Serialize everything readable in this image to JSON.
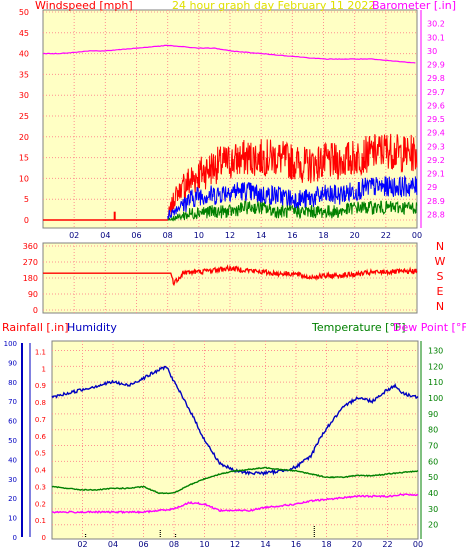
{
  "header": {
    "left_label": "Windspeed [mph]",
    "center_label": "24 hour graph day   February 11 2022",
    "right_label": "Barometer [.in]"
  },
  "colors": {
    "plot_bg": "#ffffc4",
    "grid": "#ff9090",
    "border": "#000000",
    "wind_red": "#ff0000",
    "wind_blue": "#0000ff",
    "wind_green": "#008000",
    "baro": "#ff00ff",
    "humidity": "#0000c0",
    "temperature": "#008000",
    "dewpoint": "#ff00ff",
    "rain": "#0000ff",
    "center_title": "#e0e000"
  },
  "chart_data": [
    {
      "type": "line",
      "id": "wind_baro",
      "x_tick_labels": [
        "02",
        "04",
        "06",
        "08",
        "10",
        "12",
        "14",
        "16",
        "18",
        "20",
        "22",
        "00"
      ],
      "x_range_hours": [
        0,
        24
      ],
      "left_axis": {
        "label": "Windspeed [mph]",
        "range": [
          0,
          50
        ],
        "ticks": [
          0,
          5,
          10,
          15,
          20,
          25,
          30,
          35,
          40,
          45,
          50
        ]
      },
      "right_axis": {
        "label": "Barometer [.in]",
        "range": [
          28.7,
          30.3
        ],
        "ticks": [
          "28.8",
          "28.9",
          "29",
          "29.1",
          "29.2",
          "29.3",
          "29.4",
          "29.5",
          "29.6",
          "29.7",
          "29.8",
          "29.9",
          "30",
          "30.1",
          "30.2"
        ]
      },
      "series": [
        {
          "role": "wind_gust_max",
          "x": [
            0,
            4.5,
            4.6,
            4.7,
            8,
            8.5,
            9,
            10,
            11,
            12,
            13,
            14,
            15,
            16,
            17,
            18,
            19,
            20,
            21,
            22,
            23,
            24
          ],
          "y": [
            0,
            0,
            2,
            0,
            0,
            6,
            8,
            11,
            13,
            14,
            15,
            15,
            15,
            14,
            13,
            14,
            14,
            15,
            16,
            17,
            16,
            16
          ]
        },
        {
          "role": "wind_avg",
          "x": [
            8,
            9,
            10,
            11,
            12,
            13,
            14,
            15,
            16,
            17,
            18,
            19,
            20,
            21,
            22,
            23,
            24
          ],
          "y": [
            1,
            4,
            6,
            6,
            7,
            7,
            6,
            6,
            5,
            5,
            6,
            6,
            7,
            8,
            8,
            8,
            8
          ]
        },
        {
          "role": "wind_min",
          "x": [
            8,
            9,
            10,
            11,
            12,
            13,
            14,
            15,
            16,
            17,
            18,
            19,
            20,
            21,
            22,
            23,
            24
          ],
          "y": [
            0,
            1,
            2,
            2,
            2,
            3,
            3,
            2,
            2,
            2,
            2,
            2,
            3,
            3,
            3,
            3,
            3
          ]
        },
        {
          "role": "barometer",
          "x": [
            0,
            1,
            2,
            3,
            4,
            5,
            6,
            7,
            8,
            9,
            10,
            11,
            12,
            13,
            14,
            15,
            16,
            17,
            18,
            19,
            20,
            21,
            22,
            23,
            24
          ],
          "y": [
            29.98,
            29.98,
            29.99,
            30.0,
            30.0,
            30.01,
            30.02,
            30.03,
            30.04,
            30.03,
            30.02,
            30.02,
            30.0,
            29.99,
            29.98,
            29.97,
            29.96,
            29.95,
            29.94,
            29.94,
            29.94,
            29.94,
            29.93,
            29.92,
            29.91
          ]
        }
      ]
    },
    {
      "type": "line",
      "id": "wind_direction",
      "left_axis": {
        "range": [
          0,
          360
        ],
        "ticks": [
          0,
          90,
          180,
          270,
          360
        ]
      },
      "right_labels": [
        "N",
        "W",
        "S",
        "E",
        "N"
      ],
      "series": [
        {
          "role": "direction",
          "x": [
            0,
            8.2,
            8.4,
            8.8,
            9,
            10,
            11,
            12,
            13,
            14,
            15,
            16,
            17,
            18,
            19,
            20,
            21,
            22,
            23,
            24
          ],
          "y": [
            207,
            207,
            150,
            190,
            210,
            215,
            225,
            235,
            225,
            215,
            205,
            205,
            185,
            190,
            195,
            200,
            210,
            215,
            215,
            220
          ]
        }
      ]
    },
    {
      "type": "line",
      "id": "temp_humidity",
      "header": {
        "rain_label": "Rainfall [.in]",
        "humidity_label": "Humidity",
        "temp_label": "Temperature [°F]",
        "dew_label": "Dew Point [°F]"
      },
      "x_tick_labels": [
        "02",
        "04",
        "06",
        "08",
        "10",
        "12",
        "14",
        "16",
        "18",
        "20",
        "22",
        "00"
      ],
      "left_axis_humidity": {
        "range": [
          0,
          100
        ],
        "ticks": [
          0,
          10,
          20,
          30,
          40,
          50,
          60,
          70,
          80,
          90,
          100
        ]
      },
      "left_axis_rain": {
        "range": [
          0,
          1.15
        ],
        "ticks": [
          "0",
          "0.1",
          "0.2",
          "0.3",
          "0.4",
          "0.5",
          "0.6",
          "0.7",
          "0.8",
          "0.9",
          "1",
          "1.1"
        ]
      },
      "right_axis_temp": {
        "range": [
          11,
          136
        ],
        "ticks": [
          20,
          30,
          40,
          50,
          60,
          70,
          80,
          90,
          100,
          110,
          120,
          130
        ]
      },
      "series": [
        {
          "role": "humidity",
          "x": [
            0,
            1,
            2,
            3,
            4,
            5,
            6,
            7,
            7.5,
            8,
            9,
            10,
            10.5,
            11,
            12,
            13,
            14,
            15,
            16,
            17,
            17.5,
            18,
            19,
            20,
            21,
            22,
            22.5,
            23,
            24
          ],
          "y": [
            72,
            74,
            76,
            78,
            80,
            78,
            82,
            86,
            88,
            80,
            66,
            50,
            44,
            38,
            34,
            33,
            33,
            34,
            36,
            42,
            50,
            56,
            66,
            72,
            70,
            76,
            78,
            74,
            72
          ]
        },
        {
          "role": "temperature",
          "x": [
            0,
            1,
            2,
            3,
            4,
            5,
            6,
            6.5,
            7,
            8,
            9,
            10,
            11,
            12,
            13,
            14,
            15,
            16,
            17,
            18,
            19,
            20,
            21,
            22,
            23,
            24
          ],
          "y": [
            44,
            43,
            42,
            42,
            43,
            43,
            44,
            42,
            40,
            40,
            45,
            49,
            52,
            54,
            55,
            56,
            55,
            54,
            52,
            50,
            50,
            51,
            51,
            52,
            53,
            54
          ]
        },
        {
          "role": "dewpoint",
          "x": [
            0,
            1,
            2,
            3,
            4,
            5,
            6,
            7,
            8,
            9,
            10,
            11,
            12,
            13,
            14,
            15,
            16,
            17,
            18,
            19,
            20,
            21,
            22,
            23,
            24
          ],
          "y": [
            28,
            28,
            28,
            28,
            28,
            28,
            28,
            29,
            30,
            34,
            33,
            29,
            29,
            29,
            31,
            32,
            33,
            35,
            36,
            37,
            38,
            38,
            38,
            39,
            39
          ]
        },
        {
          "role": "rainfall_marks",
          "x": [
            2.2,
            7.1,
            8.1,
            17.2
          ],
          "y": [
            0.005,
            0.06,
            0.03,
            0.1
          ]
        }
      ]
    }
  ]
}
